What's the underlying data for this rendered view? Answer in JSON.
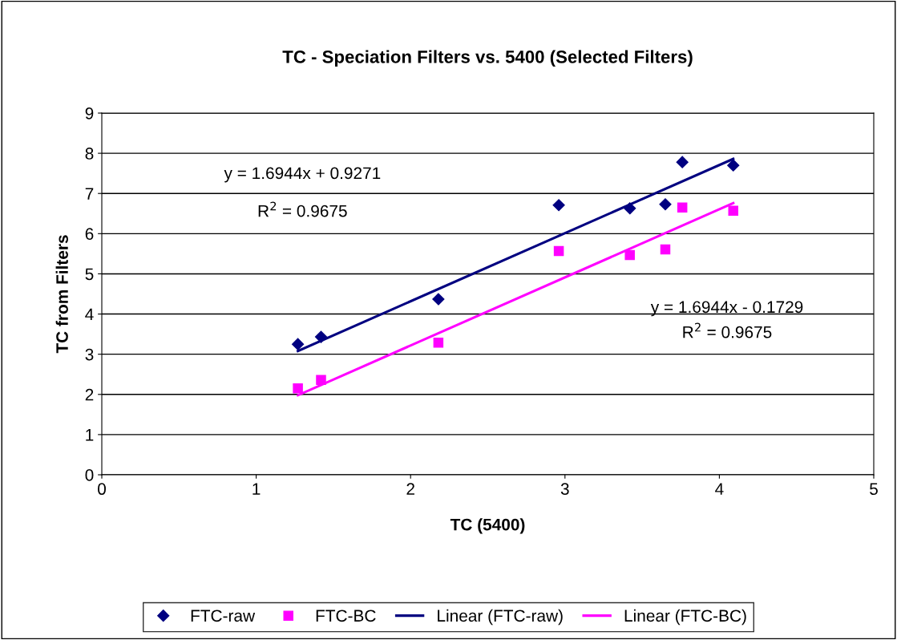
{
  "chart_data": {
    "type": "scatter",
    "title": "TC - Speciation Filters vs. 5400 (Selected Filters)",
    "xlabel": "TC (5400)",
    "ylabel": "TC from Filters",
    "xlim": [
      0,
      5
    ],
    "xticks": [
      0,
      1,
      2,
      3,
      4,
      5
    ],
    "ylim": [
      0,
      9
    ],
    "yticks": [
      0,
      1,
      2,
      3,
      4,
      5,
      6,
      7,
      8,
      9
    ],
    "grid": "y",
    "legend": "bottom",
    "annotations": [
      "y = 1.6944x + 0.9271",
      "R$^{2}$ = 0.9675",
      "y = 1.6944x - 0.1729",
      "R$^{2}$ = 0.9675"
    ],
    "series": [
      {
        "name": "FTC-raw",
        "marker": "diamond",
        "color": "#000080",
        "x": [
          1.27,
          1.42,
          2.18,
          2.96,
          3.42,
          3.65,
          3.76,
          4.09
        ],
        "values": [
          3.25,
          3.43,
          4.37,
          6.71,
          6.63,
          6.73,
          7.78,
          7.7
        ]
      },
      {
        "name": "FTC-BC",
        "marker": "square",
        "color": "#ff00ff",
        "x": [
          1.27,
          1.42,
          2.18,
          2.96,
          3.42,
          3.65,
          3.76,
          4.09
        ],
        "values": [
          2.15,
          2.36,
          3.29,
          5.57,
          5.47,
          5.61,
          6.65,
          6.57
        ]
      },
      {
        "name": "Linear (FTC-raw)",
        "type": "line",
        "line_style": "solid",
        "color": "#000080",
        "x": [
          1.27,
          4.09
        ],
        "values": [
          3.08,
          7.86
        ]
      },
      {
        "name": "Linear (FTC-BC)",
        "type": "line",
        "line_style": "solid",
        "color": "#ff00ff",
        "x": [
          1.27,
          4.09
        ],
        "values": [
          1.98,
          6.76
        ]
      }
    ]
  }
}
